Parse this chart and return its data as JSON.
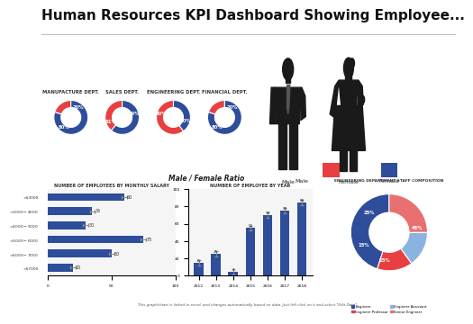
{
  "title": "Human Resources KPI Dashboard Showing Employee...",
  "title_fontsize": 11,
  "background_color": "#ffffff",
  "panel_bg": "#f2f2f2",
  "donut_charts": [
    {
      "label": "MANUFACTURE DEPT.",
      "male": 20,
      "female": 80
    },
    {
      "label": "SALES DEPT.",
      "male": 39,
      "female": 61
    },
    {
      "label": "ENGINEERING DEPT.",
      "male": 60,
      "female": 40
    },
    {
      "label": "FINANCIAL DEPT.",
      "male": 20,
      "female": 80
    }
  ],
  "male_color": "#e84040",
  "female_color": "#2e4d9b",
  "male_female_label": "Male / Female Ratio",
  "salary_chart": {
    "title": "NUMBER OF EMPLOYEES BY MONTHLY SALARY",
    "categories": [
      ">$7000",
      "<$6000-$7000",
      "<$5000-$6000",
      "<$4000-$5000",
      "<$3000-$4000",
      "<$3000"
    ],
    "values": [
      20,
      50,
      75,
      30,
      35,
      60
    ],
    "color": "#2e4d9b",
    "xlim": [
      0,
      100
    ]
  },
  "year_chart": {
    "title": "NUMBER OF EMPLOYEE BY YEAR",
    "years": [
      "2012",
      "2013",
      "2014",
      "2015",
      "2016",
      "2017",
      "2018"
    ],
    "values": [
      15,
      25,
      4,
      55,
      70,
      75,
      85
    ],
    "color": "#2e4d9b",
    "ylim": [
      0,
      100
    ]
  },
  "pie_chart": {
    "title": "ENGINEERING DEPARTMENT STAFF COMPOSITION",
    "labels": [
      "Engineer",
      "Engineer Professor",
      "Engineer Assistant",
      "Senior Engineer"
    ],
    "values": [
      45,
      15,
      15,
      25
    ],
    "colors": [
      "#2e4d9b",
      "#e84040",
      "#8ab4e0",
      "#e87070"
    ],
    "legend_labels": [
      "Engineer",
      "Engineer Professor",
      "Engineer Assistant",
      "Senior Engineer"
    ]
  },
  "footer": "This graph/chart is linked to excel, and changes automatically based on data. Just left click on it and select \"Edit Data\"."
}
